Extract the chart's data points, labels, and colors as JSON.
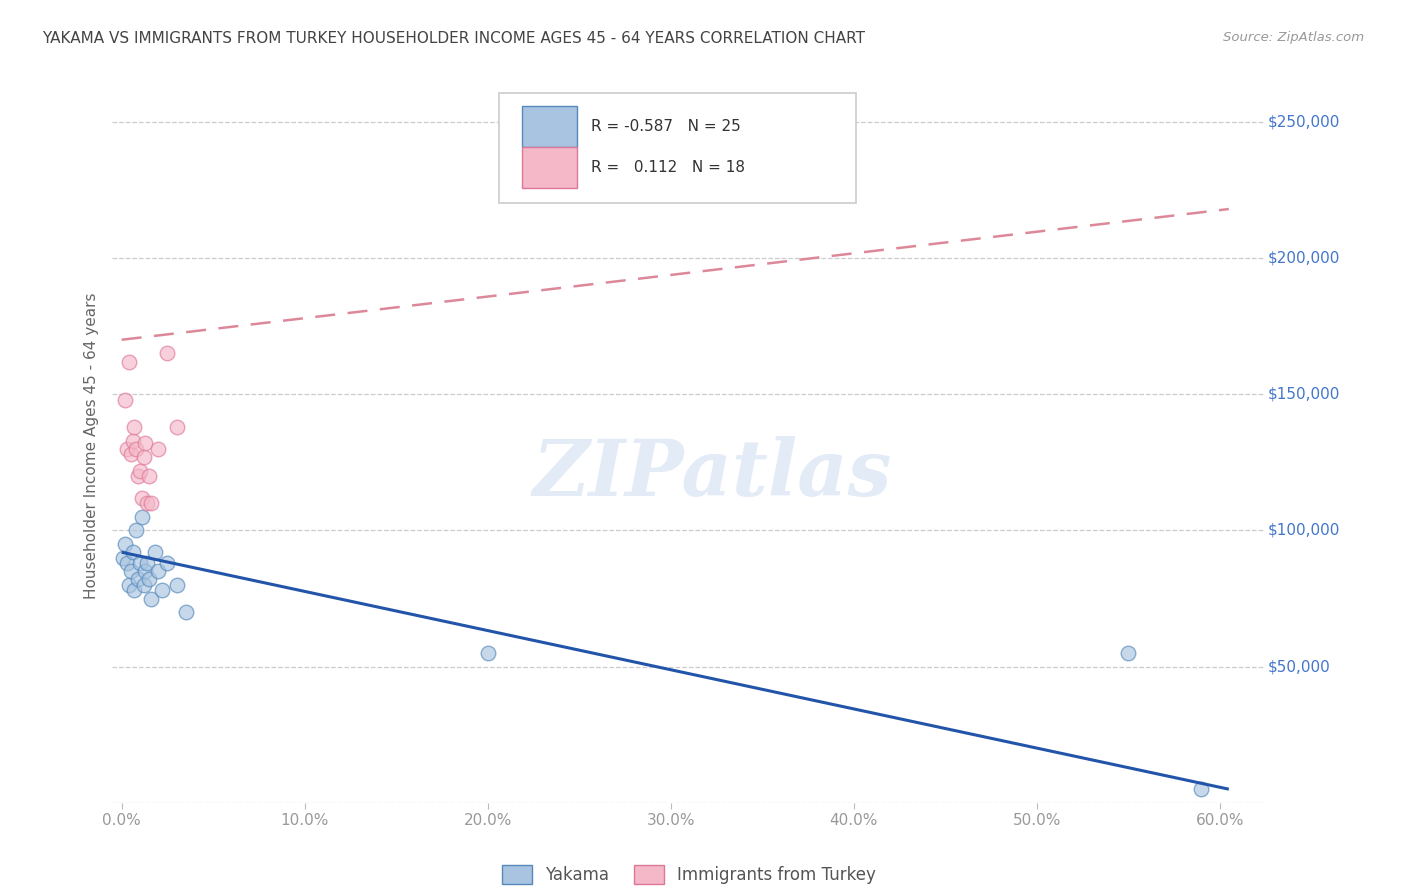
{
  "title": "YAKAMA VS IMMIGRANTS FROM TURKEY HOUSEHOLDER INCOME AGES 45 - 64 YEARS CORRELATION CHART",
  "source": "Source: ZipAtlas.com",
  "ylabel": "Householder Income Ages 45 - 64 years",
  "watermark": "ZIPatlas",
  "legend_label1": "R = -0.587   N = 25",
  "legend_label2": "R =   0.112   N = 18",
  "yakama_x": [
    0.001,
    0.002,
    0.003,
    0.004,
    0.005,
    0.006,
    0.007,
    0.008,
    0.009,
    0.01,
    0.011,
    0.012,
    0.013,
    0.014,
    0.015,
    0.016,
    0.018,
    0.02,
    0.022,
    0.025,
    0.03,
    0.035,
    0.2,
    0.55,
    0.59
  ],
  "yakama_y": [
    90000,
    95000,
    88000,
    80000,
    85000,
    92000,
    78000,
    100000,
    82000,
    88000,
    105000,
    80000,
    85000,
    88000,
    82000,
    75000,
    92000,
    85000,
    78000,
    88000,
    80000,
    70000,
    55000,
    55000,
    5000
  ],
  "turkey_x": [
    0.002,
    0.003,
    0.004,
    0.005,
    0.006,
    0.007,
    0.008,
    0.009,
    0.01,
    0.011,
    0.012,
    0.013,
    0.014,
    0.015,
    0.016,
    0.02,
    0.025,
    0.03
  ],
  "turkey_y": [
    148000,
    130000,
    162000,
    128000,
    133000,
    138000,
    130000,
    120000,
    122000,
    112000,
    127000,
    132000,
    110000,
    120000,
    110000,
    130000,
    165000,
    138000
  ],
  "yakama_line_x0": 0.0,
  "yakama_line_x1": 0.605,
  "yakama_line_y0": 92000,
  "yakama_line_y1": 5000,
  "turkey_line_x0": 0.0,
  "turkey_line_x1": 0.605,
  "turkey_line_y0": 170000,
  "turkey_line_y1": 218000,
  "yakama_color": "#a8c4e0",
  "yakama_edge": "#5588bb",
  "turkey_color": "#f4b8c8",
  "turkey_edge": "#dd7799",
  "line_blue": "#2255aa",
  "line_pink": "#dd8899",
  "xlim": [
    -0.005,
    0.625
  ],
  "ylim": [
    0,
    262000
  ],
  "yticks": [
    0,
    50000,
    100000,
    150000,
    200000,
    250000
  ],
  "ytick_labels": [
    "",
    "$50,000",
    "$100,000",
    "$150,000",
    "$200,000",
    "$250,000"
  ],
  "xticks": [
    0.0,
    0.1,
    0.2,
    0.3,
    0.4,
    0.5,
    0.6
  ],
  "xtick_labels": [
    "0.0%",
    "10.0%",
    "20.0%",
    "30.0%",
    "40.0%",
    "50.0%",
    "60.0%"
  ],
  "grid_color": "#cccccc",
  "bg_color": "#ffffff",
  "title_color": "#444444",
  "axis_blue": "#4477cc",
  "tick_gray": "#999999",
  "marker_size": 110,
  "marker_alpha": 0.65,
  "legend_bottom_label1": "Yakama",
  "legend_bottom_label2": "Immigrants from Turkey"
}
